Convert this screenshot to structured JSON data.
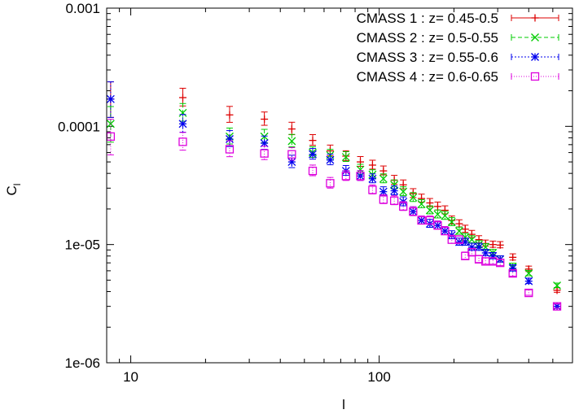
{
  "chart_data": {
    "type": "scatter",
    "title": "",
    "xlabel": "l",
    "ylabel": "C_l",
    "ylabel_main": "C",
    "ylabel_sub": "l",
    "xscale": "log",
    "yscale": "log",
    "xlim": [
      8,
      600
    ],
    "ylim": [
      1e-06,
      0.001
    ],
    "x_ticks": [
      10,
      100
    ],
    "x_tick_labels": [
      "10",
      "100"
    ],
    "y_ticks": [
      1e-06,
      1e-05,
      0.0001,
      0.001
    ],
    "y_tick_labels": [
      "1e-06",
      "1e-05",
      "0.0001",
      "0.001"
    ],
    "grid": false,
    "legend_position": "top-right",
    "series": [
      {
        "name": "CMASS 1 : z= 0.45-0.5",
        "color": "#dd0000",
        "marker": "plus",
        "x": [
          8.3,
          16.2,
          25,
          34.5,
          44.5,
          54,
          63.5,
          73.5,
          84,
          94,
          104,
          115,
          125,
          137,
          148,
          160,
          172,
          184,
          196,
          210,
          222,
          236,
          252,
          268,
          287,
          307,
          345,
          400,
          520
        ],
        "y": [
          0.00017,
          0.000175,
          0.000125,
          0.000115,
          9.5e-05,
          7.6e-05,
          6.2e-05,
          5.6e-05,
          5e-05,
          4.7e-05,
          4.2e-05,
          3.5e-05,
          3.2e-05,
          2.7e-05,
          2.45e-05,
          2.25e-05,
          2.1e-05,
          1.95e-05,
          1.6e-05,
          1.5e-05,
          1.35e-05,
          1.22e-05,
          1.1e-05,
          1.02e-05,
          1e-05,
          9.9e-06,
          7.8e-06,
          6.2e-06,
          4.1e-06
        ],
        "err": [
          0.4,
          0.2,
          0.18,
          0.15,
          0.14,
          0.12,
          0.12,
          0.11,
          0.11,
          0.1,
          0.1,
          0.1,
          0.1,
          0.1,
          0.09,
          0.09,
          0.09,
          0.09,
          0.09,
          0.08,
          0.08,
          0.08,
          0.08,
          0.07,
          0.07,
          0.07,
          0.07,
          0.06,
          0.05
        ]
      },
      {
        "name": "CMASS 2 : z= 0.5-0.55",
        "color": "#00cc00",
        "marker": "cross",
        "x": [
          8.3,
          16.2,
          25,
          34.5,
          44.5,
          54,
          63.5,
          73.5,
          84,
          94,
          104,
          115,
          125,
          137,
          148,
          160,
          172,
          184,
          196,
          210,
          222,
          236,
          252,
          268,
          287,
          307,
          345,
          400,
          520
        ],
        "y": [
          0.000105,
          0.00013,
          8.2e-05,
          8.2e-05,
          7.5e-05,
          6e-05,
          5.7e-05,
          5.5e-05,
          4.3e-05,
          3.9e-05,
          3.6e-05,
          3.2e-05,
          2.8e-05,
          2.5e-05,
          2.2e-05,
          1.95e-05,
          1.8e-05,
          1.75e-05,
          1.55e-05,
          1.3e-05,
          1.15e-05,
          1.1e-05,
          1e-05,
          9.5e-06,
          8.5e-06,
          7.5e-06,
          6.5e-06,
          5.7e-06,
          4.5e-06
        ],
        "err": [
          0.4,
          0.2,
          0.18,
          0.15,
          0.14,
          0.12,
          0.12,
          0.11,
          0.11,
          0.1,
          0.1,
          0.1,
          0.1,
          0.1,
          0.09,
          0.09,
          0.09,
          0.09,
          0.09,
          0.08,
          0.08,
          0.08,
          0.08,
          0.07,
          0.07,
          0.07,
          0.07,
          0.06,
          0.05
        ]
      },
      {
        "name": "CMASS 3 : z= 0.55-0.6",
        "color": "#0000ee",
        "marker": "star",
        "x": [
          8.3,
          16.2,
          25,
          34.5,
          44.5,
          54,
          63.5,
          73.5,
          84,
          94,
          104,
          115,
          125,
          137,
          148,
          160,
          172,
          184,
          196,
          210,
          222,
          236,
          252,
          268,
          287,
          307,
          345,
          400,
          520
        ],
        "y": [
          0.00017,
          0.000105,
          7.8e-05,
          7.2e-05,
          5e-05,
          5.8e-05,
          5.2e-05,
          4.2e-05,
          3.8e-05,
          3.6e-05,
          2.8e-05,
          2.85e-05,
          2.3e-05,
          1.9e-05,
          1.6e-05,
          1.5e-05,
          1.45e-05,
          1.3e-05,
          1.2e-05,
          1.05e-05,
          1.05e-05,
          9.5e-06,
          9.5e-06,
          8.5e-06,
          8e-06,
          7.5e-06,
          6.3e-06,
          4.9e-06,
          3e-06
        ],
        "err": [
          0.4,
          0.2,
          0.18,
          0.15,
          0.14,
          0.12,
          0.12,
          0.11,
          0.11,
          0.1,
          0.1,
          0.1,
          0.1,
          0.1,
          0.09,
          0.09,
          0.09,
          0.09,
          0.09,
          0.08,
          0.08,
          0.08,
          0.08,
          0.07,
          0.07,
          0.07,
          0.07,
          0.06,
          0.05
        ]
      },
      {
        "name": "CMASS 4 : z= 0.6-0.65",
        "color": "#dd00dd",
        "marker": "square",
        "x": [
          8.3,
          16.2,
          25,
          34.5,
          44.5,
          54,
          63.5,
          73.5,
          84,
          94,
          104,
          115,
          125,
          137,
          148,
          160,
          172,
          184,
          196,
          210,
          222,
          236,
          252,
          268,
          287,
          307,
          345,
          400,
          520
        ],
        "y": [
          8.2e-05,
          7.4e-05,
          6.4e-05,
          5.9e-05,
          5.8e-05,
          4.2e-05,
          3.3e-05,
          3.8e-05,
          3.8e-05,
          2.9e-05,
          2.4e-05,
          2.35e-05,
          2.1e-05,
          1.9e-05,
          1.6e-05,
          1.6e-05,
          1.45e-05,
          1.3e-05,
          1.1e-05,
          1.1e-05,
          8e-06,
          8.6e-06,
          7.5e-06,
          7.2e-06,
          7.2e-06,
          7e-06,
          5.7e-06,
          3.9e-06,
          3e-06
        ],
        "err": [
          0.4,
          0.2,
          0.18,
          0.15,
          0.14,
          0.12,
          0.12,
          0.11,
          0.11,
          0.1,
          0.1,
          0.1,
          0.1,
          0.1,
          0.09,
          0.09,
          0.09,
          0.09,
          0.09,
          0.08,
          0.08,
          0.08,
          0.08,
          0.07,
          0.07,
          0.07,
          0.07,
          0.06,
          0.05
        ]
      }
    ]
  }
}
